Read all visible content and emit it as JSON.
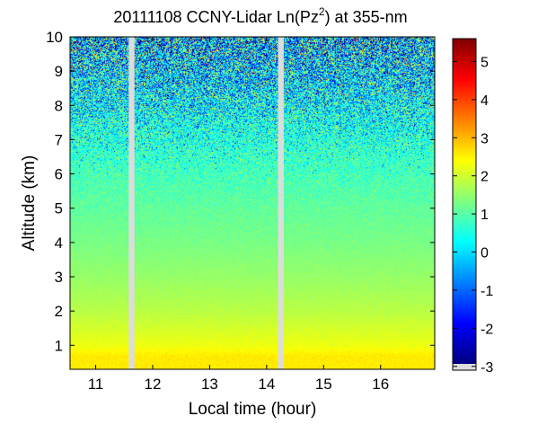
{
  "chart_data": {
    "type": "heatmap",
    "title_main": "20111108 CCNY-Lidar Ln(Pz",
    "title_sup": "2",
    "title_tail": ") at 355-nm",
    "xlabel": "Local time (hour)",
    "ylabel": "Altitude (km)",
    "xlim": [
      10.55,
      16.95
    ],
    "ylim": [
      0.3,
      10.0
    ],
    "x_ticks": [
      {
        "value": 11,
        "label": "11"
      },
      {
        "value": 12,
        "label": "12"
      },
      {
        "value": 13,
        "label": "13"
      },
      {
        "value": 14,
        "label": "14"
      },
      {
        "value": 15,
        "label": "15"
      },
      {
        "value": 16,
        "label": "16"
      }
    ],
    "y_ticks": [
      {
        "value": 1,
        "label": "1"
      },
      {
        "value": 2,
        "label": "2"
      },
      {
        "value": 3,
        "label": "3"
      },
      {
        "value": 4,
        "label": "4"
      },
      {
        "value": 5,
        "label": "5"
      },
      {
        "value": 6,
        "label": "6"
      },
      {
        "value": 7,
        "label": "7"
      },
      {
        "value": 8,
        "label": "8"
      },
      {
        "value": 9,
        "label": "9"
      },
      {
        "value": 10,
        "label": "10"
      }
    ],
    "data_gaps_hours": [
      {
        "start": 11.58,
        "end": 11.68
      },
      {
        "start": 14.2,
        "end": 14.3
      }
    ],
    "altitude_profile": [
      {
        "altitude_km": 0.3,
        "value": 2.5
      },
      {
        "altitude_km": 0.7,
        "value": 2.5
      },
      {
        "altitude_km": 1.0,
        "value": 2.2
      },
      {
        "altitude_km": 2.0,
        "value": 1.75
      },
      {
        "altitude_km": 3.0,
        "value": 1.45
      },
      {
        "altitude_km": 4.0,
        "value": 1.2
      },
      {
        "altitude_km": 5.0,
        "value": 1.0
      },
      {
        "altitude_km": 6.0,
        "value": 0.75
      },
      {
        "altitude_km": 7.0,
        "value": 0.5
      },
      {
        "altitude_km": 8.0,
        "value": 0.25
      },
      {
        "altitude_km": 9.0,
        "value": 0.05
      },
      {
        "altitude_km": 10.0,
        "value": -0.1
      }
    ],
    "colorbar": {
      "min": -3.1,
      "max": 5.6,
      "ticks": [
        {
          "value": -3,
          "label": "-3"
        },
        {
          "value": -2,
          "label": "-2"
        },
        {
          "value": -1,
          "label": "-1"
        },
        {
          "value": 0,
          "label": "0"
        },
        {
          "value": 1,
          "label": "1"
        },
        {
          "value": 2,
          "label": "2"
        },
        {
          "value": 3,
          "label": "3"
        },
        {
          "value": 4,
          "label": "4"
        },
        {
          "value": 5,
          "label": "5"
        }
      ],
      "colormap": "jet",
      "missing_color": "#dcdcdc"
    }
  }
}
